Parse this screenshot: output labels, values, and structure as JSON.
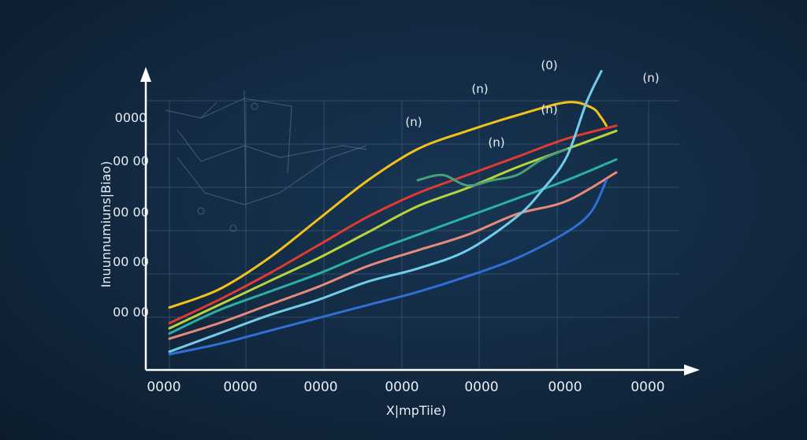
{
  "chart_data": {
    "type": "line",
    "xlabel": "X|mpTiie)",
    "ylabel": "Inuunnumiuns|Biao)",
    "x_tick_labels": [
      "0000",
      "0000",
      "0000",
      "0000",
      "0000",
      "0000",
      "0000"
    ],
    "y_tick_labels": [
      "0000",
      "00 00",
      "00 00",
      "00 00",
      "00 00"
    ],
    "annotations": [
      "(0)",
      "(n)",
      "(n)",
      "(n)",
      "(n)",
      "(n)"
    ],
    "xlim": [
      0,
      100
    ],
    "ylim": [
      0,
      100
    ],
    "grid": true,
    "series": [
      {
        "color": "#f2c21b",
        "x": [
          0,
          10,
          20,
          30,
          40,
          50,
          60,
          70,
          80,
          85,
          87,
          88
        ],
        "y": [
          21,
          28,
          40,
          55,
          70,
          82,
          89,
          95,
          100,
          98,
          94,
          91
        ]
      },
      {
        "color": "#e03a32",
        "x": [
          0,
          10,
          20,
          30,
          40,
          50,
          60,
          70,
          80,
          90
        ],
        "y": [
          15,
          24,
          34,
          45,
          56,
          65,
          72,
          79,
          86,
          91
        ]
      },
      {
        "color": "#b8d43a",
        "x": [
          0,
          10,
          20,
          30,
          40,
          50,
          60,
          70,
          80,
          90
        ],
        "y": [
          13,
          22,
          31,
          40,
          50,
          60,
          67,
          75,
          82,
          89
        ]
      },
      {
        "color": "#2bb0a6",
        "x": [
          0,
          10,
          20,
          30,
          40,
          50,
          60,
          70,
          80,
          90
        ],
        "y": [
          11,
          20,
          27,
          34,
          42,
          49,
          56,
          63,
          70,
          78
        ]
      },
      {
        "color": "#e88a7a",
        "x": [
          0,
          10,
          20,
          30,
          40,
          50,
          60,
          70,
          80,
          90
        ],
        "y": [
          9,
          15,
          22,
          29,
          37,
          43,
          49,
          57,
          62,
          73
        ]
      },
      {
        "color": "#72cdea",
        "x": [
          0,
          10,
          20,
          30,
          40,
          50,
          60,
          70,
          75,
          80,
          84,
          87
        ],
        "y": [
          4,
          11,
          18,
          24,
          31,
          36,
          43,
          56,
          66,
          79,
          100,
          112
        ]
      },
      {
        "color": "#2f6fd6",
        "x": [
          0,
          10,
          20,
          30,
          40,
          50,
          60,
          70,
          80,
          85,
          88
        ],
        "y": [
          3,
          7,
          12,
          17,
          22,
          27,
          33,
          40,
          50,
          58,
          70
        ]
      },
      {
        "color": "#4aa07a",
        "x": [
          50,
          55,
          60,
          65,
          70,
          75,
          80
        ],
        "y": [
          70,
          72,
          68,
          70,
          72,
          78,
          82
        ]
      }
    ]
  },
  "colors": {
    "background": "#12283f",
    "axis": "#ffffff",
    "grid": "#3c5a78",
    "text": "#e8eef4"
  }
}
